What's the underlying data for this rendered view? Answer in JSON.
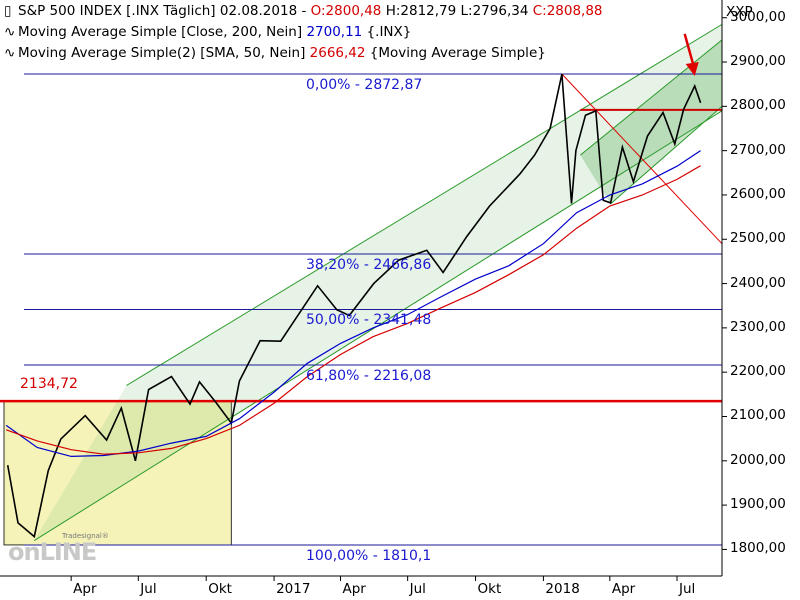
{
  "header": {
    "line1": {
      "name": "S&P 500 INDEX [.INX  Täglich] 02.08.2018",
      "open": "O:2800,48",
      "high": "H:2812,79",
      "low": "L:2796,34",
      "close": "C:2808,88"
    },
    "line2": {
      "label": "Moving Average Simple [Close, 200, Nein]",
      "value": "2700,11",
      "suffix": "{.INX}"
    },
    "line3": {
      "label": "Moving Average Simple(2) [SMA, 50, Nein]",
      "value": "2666,42",
      "suffix": "{Moving Average Simple}"
    }
  },
  "currency": "XXP",
  "brand": {
    "small": "Tradesignal®",
    "big": "onLINE"
  },
  "chart_data": {
    "type": "line",
    "title": "S&P 500 INDEX [.INX  Täglich] 02.08.2018",
    "yaxis": {
      "range": [
        1740,
        3040
      ],
      "ticks": [
        "3000,00",
        "2900,00",
        "2800,00",
        "2700,00",
        "2600,00",
        "2500,00",
        "2400,00",
        "2300,00",
        "2200,00",
        "2100,00",
        "2000,00",
        "1900,00",
        "1800,00"
      ],
      "tick_values": [
        3000,
        2900,
        2800,
        2700,
        2600,
        2500,
        2400,
        2300,
        2200,
        2100,
        2000,
        1900,
        1800
      ],
      "position": "right"
    },
    "xaxis": {
      "range": [
        "2016-01-01",
        "2018-08-31"
      ],
      "ticks": [
        "Apr",
        "Jul",
        "Okt",
        "2017",
        "Apr",
        "Jul",
        "Okt",
        "2018",
        "Apr",
        "Jul"
      ],
      "tick_dates": [
        "2016-04-01",
        "2016-07-01",
        "2016-10-01",
        "2017-01-01",
        "2017-04-01",
        "2017-07-01",
        "2017-10-01",
        "2018-01-01",
        "2018-04-01",
        "2018-07-01"
      ]
    },
    "series": [
      {
        "name": "S&P 500 INDEX",
        "color": "#000000",
        "x": [
          "2016-01-06",
          "2016-01-20",
          "2016-02-11",
          "2016-03-01",
          "2016-03-18",
          "2016-04-20",
          "2016-05-19",
          "2016-06-08",
          "2016-06-27",
          "2016-07-15",
          "2016-08-15",
          "2016-09-09",
          "2016-09-22",
          "2016-10-14",
          "2016-11-04",
          "2016-11-15",
          "2016-12-13",
          "2017-01-10",
          "2017-03-01",
          "2017-03-27",
          "2017-04-13",
          "2017-05-16",
          "2017-06-19",
          "2017-07-27",
          "2017-08-18",
          "2017-09-19",
          "2017-10-20",
          "2017-11-30",
          "2017-12-20",
          "2018-01-10",
          "2018-01-26",
          "2018-02-08",
          "2018-02-14",
          "2018-02-27",
          "2018-03-09",
          "2018-03-13",
          "2018-03-23",
          "2018-04-02",
          "2018-04-18",
          "2018-05-03",
          "2018-05-22",
          "2018-06-12",
          "2018-06-28",
          "2018-07-10",
          "2018-07-25",
          "2018-08-02"
        ],
        "values": [
          1990,
          1860,
          1829,
          1978,
          2049,
          2102,
          2047,
          2119,
          2000,
          2161,
          2190,
          2128,
          2178,
          2132,
          2085,
          2180,
          2271,
          2270,
          2395,
          2341,
          2328,
          2400,
          2453,
          2475,
          2425,
          2506,
          2575,
          2647,
          2690,
          2750,
          2873,
          2581,
          2700,
          2780,
          2787,
          2790,
          2588,
          2582,
          2708,
          2630,
          2733,
          2786,
          2715,
          2793,
          2846,
          2808
        ]
      },
      {
        "name": "Moving Average Simple [Close, 200, Nein]",
        "color": "#0000cc",
        "x": [
          "2016-01-04",
          "2016-02-15",
          "2016-04-01",
          "2016-05-15",
          "2016-07-01",
          "2016-08-15",
          "2016-10-01",
          "2016-11-15",
          "2017-01-01",
          "2017-02-15",
          "2017-04-01",
          "2017-05-15",
          "2017-07-01",
          "2017-08-15",
          "2017-10-01",
          "2017-11-15",
          "2018-01-01",
          "2018-02-15",
          "2018-04-01",
          "2018-05-15",
          "2018-07-01",
          "2018-08-02"
        ],
        "values": [
          2080,
          2030,
          2010,
          2012,
          2022,
          2040,
          2055,
          2095,
          2155,
          2220,
          2265,
          2300,
          2330,
          2370,
          2410,
          2440,
          2490,
          2560,
          2600,
          2625,
          2665,
          2700
        ]
      },
      {
        "name": "Moving Average Simple(2) [SMA, 50, Nein]",
        "color": "#d40000",
        "x": [
          "2016-01-04",
          "2016-02-15",
          "2016-04-01",
          "2016-05-15",
          "2016-07-01",
          "2016-08-15",
          "2016-10-01",
          "2016-11-15",
          "2017-01-01",
          "2017-02-15",
          "2017-04-01",
          "2017-05-15",
          "2017-07-01",
          "2017-08-15",
          "2017-10-01",
          "2017-11-15",
          "2018-01-01",
          "2018-02-15",
          "2018-04-01",
          "2018-05-15",
          "2018-07-01",
          "2018-08-02"
        ],
        "values": [
          2070,
          2045,
          2025,
          2015,
          2018,
          2028,
          2050,
          2080,
          2130,
          2190,
          2240,
          2280,
          2310,
          2345,
          2380,
          2420,
          2465,
          2525,
          2575,
          2600,
          2635,
          2666
        ]
      }
    ],
    "fibonacci": [
      {
        "label": "0,00% - 2872,87",
        "value": 2872.87
      },
      {
        "label": "38,20% - 2466,86",
        "value": 2466.86
      },
      {
        "label": "50,00% - 2341,48",
        "value": 2341.48
      },
      {
        "label": "61,80% - 2216,08",
        "value": 2216.08
      },
      {
        "label": "100,00% - 1810,1",
        "value": 1810.1
      }
    ],
    "horizontal_level": {
      "label": "2134,72",
      "value": 2134.72,
      "color": "#e00000"
    },
    "resistance_level": {
      "value": 2792,
      "color": "#cc0000"
    },
    "channels": [
      {
        "name": "long-term channel",
        "color": "#2a9a2a",
        "upper": [
          [
            "2016-06-15",
            2170
          ],
          [
            "2018-08-31",
            2985
          ]
        ],
        "lower": [
          [
            "2016-02-11",
            1820
          ],
          [
            "2018-08-31",
            2790
          ]
        ]
      },
      {
        "name": "short-term channel",
        "color": "#2a9a2a",
        "upper": [
          [
            "2018-02-20",
            2690
          ],
          [
            "2018-08-31",
            2950
          ]
        ],
        "lower": [
          [
            "2018-04-02",
            2580
          ],
          [
            "2018-08-31",
            2800
          ]
        ]
      }
    ],
    "range_box": {
      "x": [
        "2016-01-01",
        "2016-11-04"
      ],
      "y": [
        1810.1,
        2134.72
      ],
      "color": "#f5f3b8"
    },
    "downtrend_line": {
      "from": [
        "2018-01-26",
        2873
      ],
      "to": [
        "2018-08-31",
        2490
      ],
      "color": "#e00000"
    },
    "arrow": {
      "at": [
        "2018-07-25",
        2846
      ],
      "color": "#e00000"
    },
    "grid": false,
    "legend": "top-left"
  }
}
